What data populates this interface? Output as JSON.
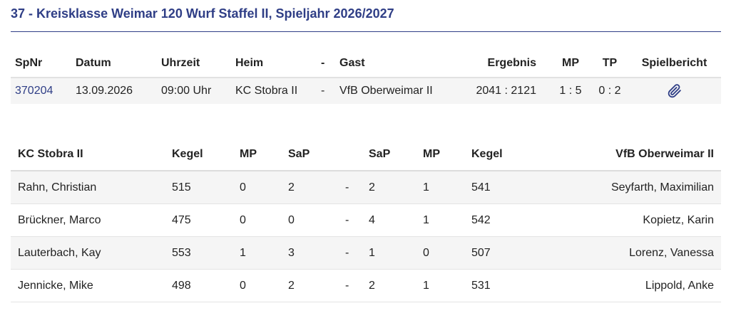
{
  "page": {
    "title": "37 - Kreisklasse Weimar 120 Wurf Staffel II, Spieljahr 2026/2027"
  },
  "match": {
    "headers": {
      "spnr": "SpNr",
      "datum": "Datum",
      "uhrzeit": "Uhrzeit",
      "heim": "Heim",
      "dash": "-",
      "gast": "Gast",
      "ergebnis": "Ergebnis",
      "mp": "MP",
      "tp": "TP",
      "spielbericht": "Spielbericht"
    },
    "row": {
      "spnr": "370204",
      "datum": "13.09.2026",
      "uhrzeit": "09:00 Uhr",
      "heim": "KC Stobra II",
      "dash": "-",
      "gast": "VfB Oberweimar II",
      "ergebnis": "2041 : 2121",
      "mp": "1 : 5",
      "tp": "0 : 2",
      "spielbericht_icon": "paperclip-icon",
      "accent_color": "#2f3e86"
    }
  },
  "players": {
    "headers": {
      "home_team": "KC Stobra II",
      "kegel_home": "Kegel",
      "mp_home": "MP",
      "sap_home": "SaP",
      "sap_away": "SaP",
      "mp_away": "MP",
      "kegel_away": "Kegel",
      "away_team": "VfB Oberweimar II"
    },
    "rows": [
      {
        "home": "Rahn, Christian",
        "kegel_home": "515",
        "mp_home": "0",
        "sap_home": "2",
        "sep": "-",
        "sap_away": "2",
        "mp_away": "1",
        "kegel_away": "541",
        "away": "Seyfarth, Maximilian"
      },
      {
        "home": "Brückner, Marco",
        "kegel_home": "475",
        "mp_home": "0",
        "sap_home": "0",
        "sep": "-",
        "sap_away": "4",
        "mp_away": "1",
        "kegel_away": "542",
        "away": "Kopietz, Karin"
      },
      {
        "home": "Lauterbach, Kay",
        "kegel_home": "553",
        "mp_home": "1",
        "sap_home": "3",
        "sep": "-",
        "sap_away": "1",
        "mp_away": "0",
        "kegel_away": "507",
        "away": "Lorenz, Vanessa"
      },
      {
        "home": "Jennicke, Mike",
        "kegel_home": "498",
        "mp_home": "0",
        "sap_home": "2",
        "sep": "-",
        "sap_away": "2",
        "mp_away": "1",
        "kegel_away": "531",
        "away": "Lippold, Anke"
      }
    ]
  }
}
